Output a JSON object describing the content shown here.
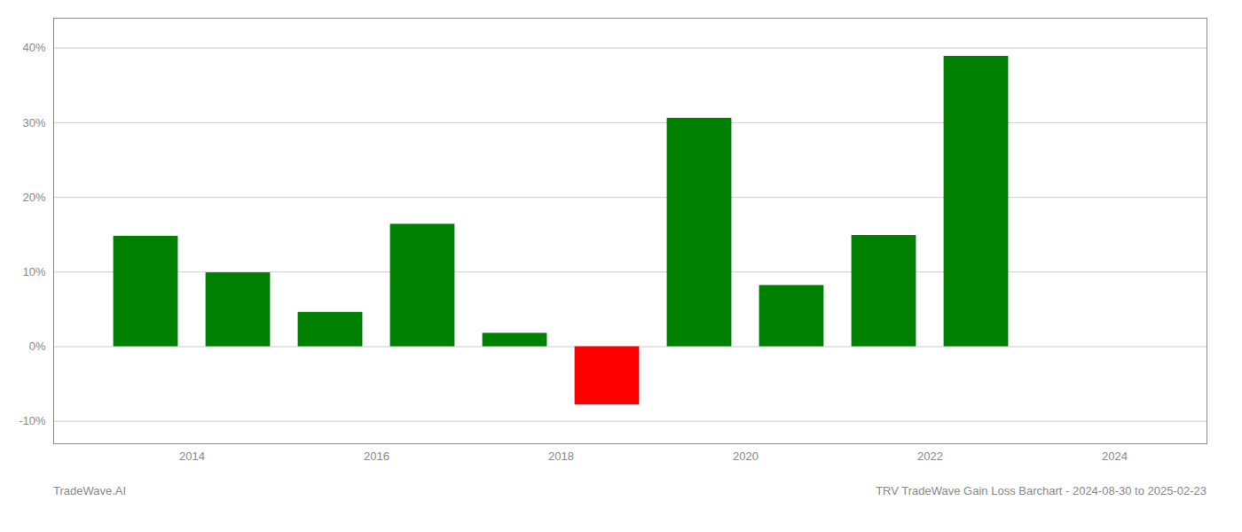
{
  "chart_data": {
    "type": "bar",
    "title": "TRV TradeWave Gain Loss Barchart - 2024-08-30 to 2025-02-23",
    "caption": "TradeWave.AI",
    "x": [
      2013.5,
      2014.5,
      2015.5,
      2016.5,
      2017.5,
      2018.5,
      2019.5,
      2020.5,
      2021.5,
      2022.5,
      2023.5
    ],
    "values": [
      0.148,
      0.099,
      0.046,
      0.164,
      0.018,
      -0.078,
      0.306,
      0.082,
      0.149,
      0.389,
      0.0
    ],
    "colors": [
      "#008000",
      "#008000",
      "#008000",
      "#008000",
      "#008000",
      "#ff0000",
      "#008000",
      "#008000",
      "#008000",
      "#008000",
      "#008000"
    ],
    "xlim": [
      2012.5,
      2025.0
    ],
    "xticks": [
      2014,
      2016,
      2018,
      2020,
      2022,
      2024
    ],
    "ylim": [
      -0.13,
      0.44
    ],
    "yticks": [
      {
        "value": -0.1,
        "label": "-10%"
      },
      {
        "value": 0.0,
        "label": "0%"
      },
      {
        "value": 0.1,
        "label": "10%"
      },
      {
        "value": 0.2,
        "label": "20%"
      },
      {
        "value": 0.3,
        "label": "30%"
      },
      {
        "value": 0.4,
        "label": "40%"
      }
    ],
    "grid": true
  }
}
